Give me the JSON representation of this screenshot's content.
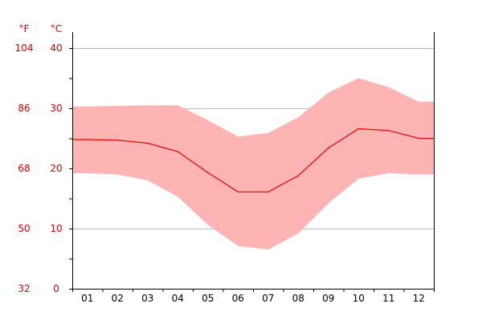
{
  "chart_data": {
    "type": "area",
    "categories": [
      "01",
      "02",
      "03",
      "04",
      "05",
      "06",
      "07",
      "08",
      "09",
      "10",
      "11",
      "12"
    ],
    "unit_left": "°F",
    "unit_right": "°C",
    "ylim_celsius": [
      0,
      40
    ],
    "y_ticks_celsius": [
      0,
      10,
      20,
      30,
      40
    ],
    "y_ticks_fahrenheit": [
      32,
      50,
      68,
      86,
      104
    ],
    "grid": true,
    "series": [
      {
        "role": "high",
        "values": [
          30.3,
          30.4,
          30.5,
          30.5,
          28.0,
          25.3,
          25.9,
          28.5,
          32.6,
          35.0,
          33.5,
          31.1
        ]
      },
      {
        "role": "mean",
        "values": [
          24.8,
          24.7,
          24.2,
          22.8,
          19.3,
          16.1,
          16.1,
          18.8,
          23.4,
          26.6,
          26.3,
          25.0
        ]
      },
      {
        "role": "low",
        "values": [
          19.2,
          19.0,
          18.0,
          15.3,
          10.6,
          7.1,
          6.5,
          9.2,
          14.2,
          18.3,
          19.2,
          19.0
        ]
      }
    ],
    "colors": {
      "band": "#ffb4b4",
      "line": "#ee0000",
      "label": "#dd0000",
      "grid": "#bbbbbb",
      "axis": "#000000"
    }
  }
}
